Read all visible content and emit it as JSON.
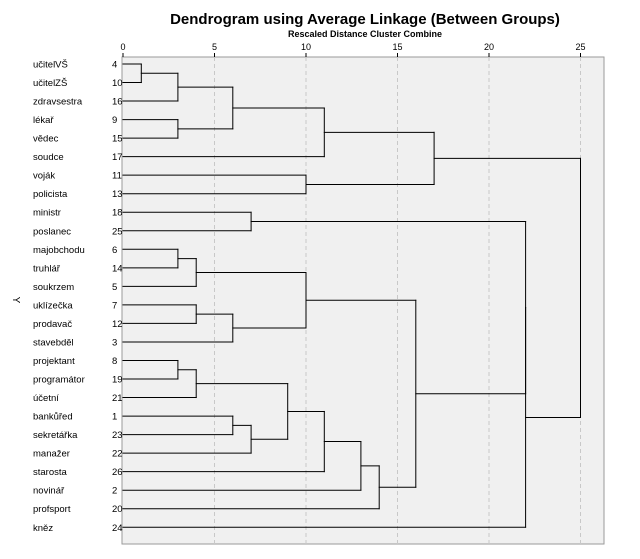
{
  "chart_data": {
    "type": "dendrogram",
    "title": "Dendrogram using Average Linkage (Between Groups)",
    "subtitle": "Rescaled Distance Cluster Combine",
    "ylabel": "Y",
    "xlim": [
      0,
      26.3
    ],
    "x_ticks": [
      0,
      5,
      10,
      15,
      20,
      25
    ],
    "grid": true,
    "leaves": [
      {
        "label": "učitelVŠ",
        "case": "4"
      },
      {
        "label": "učitelZŠ",
        "case": "10"
      },
      {
        "label": "zdravsestra",
        "case": "16"
      },
      {
        "label": "lékař",
        "case": "9"
      },
      {
        "label": "vědec",
        "case": "15"
      },
      {
        "label": "soudce",
        "case": "17"
      },
      {
        "label": "voják",
        "case": "11"
      },
      {
        "label": "policista",
        "case": "13"
      },
      {
        "label": "ministr",
        "case": "18"
      },
      {
        "label": "poslanec",
        "case": "25"
      },
      {
        "label": "majobchodu",
        "case": "6"
      },
      {
        "label": "truhlář",
        "case": "14"
      },
      {
        "label": "soukrzem",
        "case": "5"
      },
      {
        "label": "uklízečka",
        "case": "7"
      },
      {
        "label": "prodavač",
        "case": "12"
      },
      {
        "label": "stavebděl",
        "case": "3"
      },
      {
        "label": "projektant",
        "case": "8"
      },
      {
        "label": "programátor",
        "case": "19"
      },
      {
        "label": "účetní",
        "case": "21"
      },
      {
        "label": "bankůřed",
        "case": "1"
      },
      {
        "label": "sekretářka",
        "case": "23"
      },
      {
        "label": "manažer",
        "case": "22"
      },
      {
        "label": "starosta",
        "case": "26"
      },
      {
        "label": "novinář",
        "case": "2"
      },
      {
        "label": "profsport",
        "case": "20"
      },
      {
        "label": "kněz",
        "case": "24"
      }
    ],
    "merges": [
      {
        "id": "n1",
        "children": [
          "L0",
          "L1"
        ],
        "distance": 1
      },
      {
        "id": "n2",
        "children": [
          "n1",
          "L2"
        ],
        "distance": 3
      },
      {
        "id": "n3",
        "children": [
          "L3",
          "L4"
        ],
        "distance": 3
      },
      {
        "id": "n4",
        "children": [
          "n2",
          "n3"
        ],
        "distance": 6
      },
      {
        "id": "n5",
        "children": [
          "n4",
          "L5"
        ],
        "distance": 11
      },
      {
        "id": "n6",
        "children": [
          "L6",
          "L7"
        ],
        "distance": 10
      },
      {
        "id": "n7",
        "children": [
          "n5",
          "n6"
        ],
        "distance": 17
      },
      {
        "id": "n8",
        "children": [
          "L8",
          "L9"
        ],
        "distance": 7
      },
      {
        "id": "n9",
        "children": [
          "L10",
          "L11"
        ],
        "distance": 3
      },
      {
        "id": "n10",
        "children": [
          "n9",
          "L12"
        ],
        "distance": 4
      },
      {
        "id": "n11",
        "children": [
          "L13",
          "L14"
        ],
        "distance": 4
      },
      {
        "id": "n12",
        "children": [
          "n11",
          "L15"
        ],
        "distance": 6
      },
      {
        "id": "n13",
        "children": [
          "n10",
          "n12"
        ],
        "distance": 10
      },
      {
        "id": "n14",
        "children": [
          "L16",
          "L17"
        ],
        "distance": 3
      },
      {
        "id": "n15",
        "children": [
          "n14",
          "L18"
        ],
        "distance": 4
      },
      {
        "id": "n16",
        "children": [
          "L19",
          "L20"
        ],
        "distance": 6
      },
      {
        "id": "n17",
        "children": [
          "n16",
          "L21"
        ],
        "distance": 7
      },
      {
        "id": "n18",
        "children": [
          "n15",
          "n17"
        ],
        "distance": 9
      },
      {
        "id": "n19",
        "children": [
          "n18",
          "L22"
        ],
        "distance": 11
      },
      {
        "id": "n20",
        "children": [
          "n19",
          "L23"
        ],
        "distance": 13
      },
      {
        "id": "n21",
        "children": [
          "n20",
          "L24"
        ],
        "distance": 14
      },
      {
        "id": "n22",
        "children": [
          "n13",
          "n21"
        ],
        "distance": 16
      },
      {
        "id": "n23",
        "children": [
          "n8",
          "n22"
        ],
        "distance": 22
      },
      {
        "id": "n24",
        "children": [
          "n23",
          "L25"
        ],
        "distance": 22
      },
      {
        "id": "n25",
        "children": [
          "n7",
          "n24"
        ],
        "distance": 25
      }
    ]
  },
  "colors": {
    "background": "#ffffff",
    "plot_background": "#f0f0f0",
    "grid": "#c8c8c8",
    "line": "#000000"
  }
}
